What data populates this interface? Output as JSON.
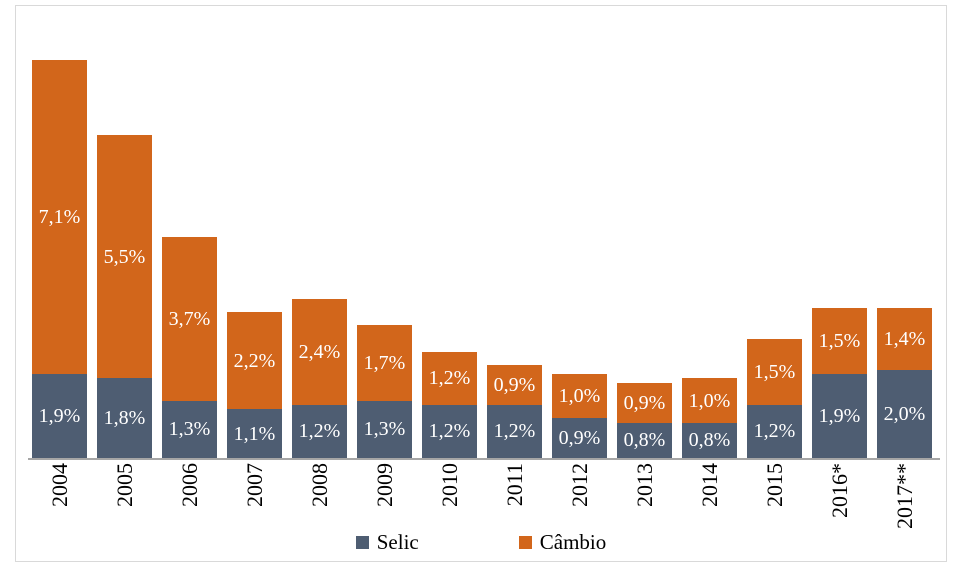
{
  "chart_data": {
    "type": "bar",
    "stacked": true,
    "title": "",
    "xlabel": "",
    "ylabel": "",
    "grid": false,
    "legend_position": "bottom",
    "ylim": [
      0,
      10.2
    ],
    "categories": [
      "2004",
      "2005",
      "2006",
      "2007",
      "2008",
      "2009",
      "2010",
      "2011",
      "2012",
      "2013",
      "2014",
      "2015",
      "2016*",
      "2017**"
    ],
    "series": [
      {
        "key": "selic",
        "name": "Selic",
        "color": "#4E5D72",
        "values": [
          1.9,
          1.8,
          1.3,
          1.1,
          1.2,
          1.3,
          1.2,
          1.2,
          0.9,
          0.8,
          0.8,
          1.2,
          1.9,
          2.0
        ],
        "labels": [
          "1,9%",
          "1,8%",
          "1,3%",
          "1,1%",
          "1,2%",
          "1,3%",
          "1,2%",
          "1,2%",
          "0,9%",
          "0,8%",
          "0,8%",
          "1,2%",
          "1,9%",
          "2,0%"
        ]
      },
      {
        "key": "cambio",
        "name": "Câmbio",
        "color": "#D2661B",
        "values": [
          7.1,
          5.5,
          3.7,
          2.2,
          2.4,
          1.7,
          1.2,
          0.9,
          1.0,
          0.9,
          1.0,
          1.5,
          1.5,
          1.4
        ],
        "labels": [
          "7,1%",
          "5,5%",
          "3,7%",
          "2,2%",
          "2,4%",
          "1,7%",
          "1,2%",
          "0,9%",
          "1,0%",
          "0,9%",
          "1,0%",
          "1,5%",
          "1,5%",
          "1,4%"
        ]
      }
    ]
  },
  "legend": {
    "items": [
      {
        "key": "selic",
        "label": "Selic",
        "color": "#4E5D72"
      },
      {
        "key": "cambio",
        "label": "Câmbio",
        "color": "#D2661B"
      }
    ]
  },
  "colors": {
    "frame_border": "#D9D9D9",
    "axis_line": "#A6A6A6",
    "bar_label_text": "#FFFFFF",
    "axis_label_text": "#000000",
    "background": "#FFFFFF"
  }
}
